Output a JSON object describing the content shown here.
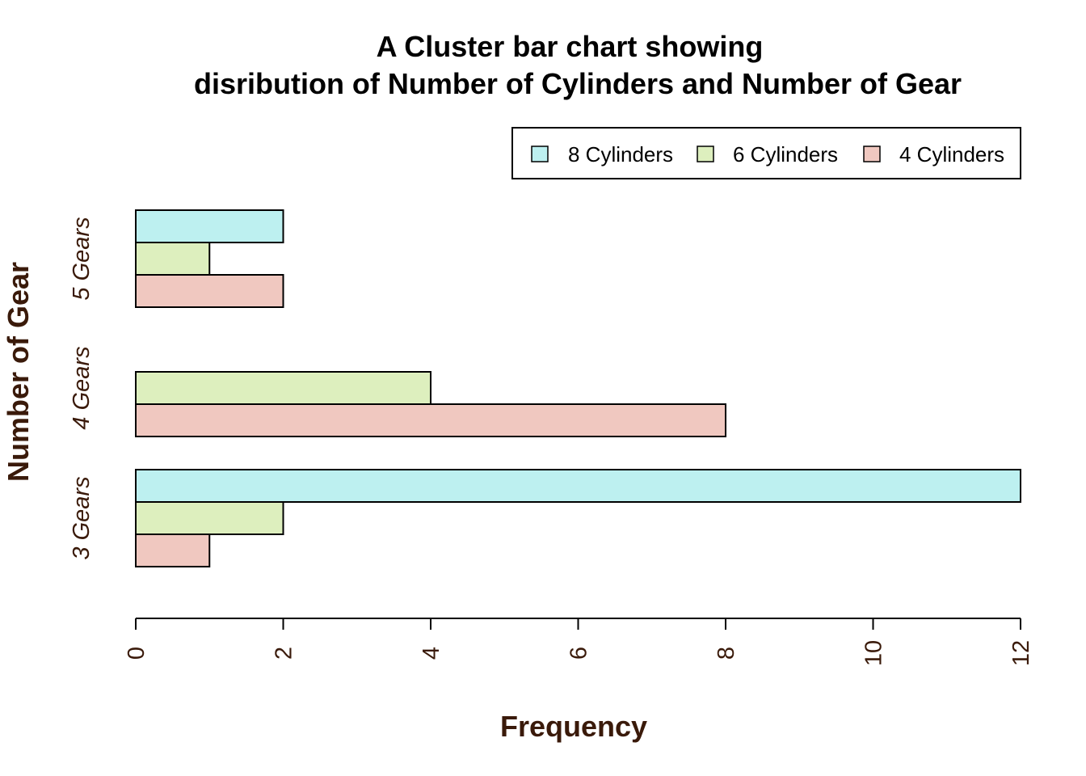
{
  "chart_data": {
    "type": "bar",
    "orientation": "horizontal",
    "title_line1": "A Cluster bar chart showing",
    "title_line2": "disribution of Number of Cylinders and Number of Gear",
    "xlabel": "Frequency",
    "ylabel": "Number of Gear",
    "categories": [
      "3 Gears",
      "4 Gears",
      "5 Gears"
    ],
    "series": [
      {
        "name": "4 Cylinders",
        "values": [
          1,
          8,
          2
        ],
        "color": "#f0c8c0"
      },
      {
        "name": "6 Cylinders",
        "values": [
          2,
          4,
          1
        ],
        "color": "#ddefbe"
      },
      {
        "name": "8 Cylinders",
        "values": [
          12,
          0,
          2
        ],
        "color": "#bdf0f0"
      }
    ],
    "legend_order": [
      "8 Cylinders",
      "6 Cylinders",
      "4 Cylinders"
    ],
    "legend_position": "top-right",
    "xlim": [
      0,
      12
    ],
    "xticks": [
      "0",
      "2",
      "4",
      "6",
      "8",
      "10",
      "12"
    ],
    "grid": false
  }
}
